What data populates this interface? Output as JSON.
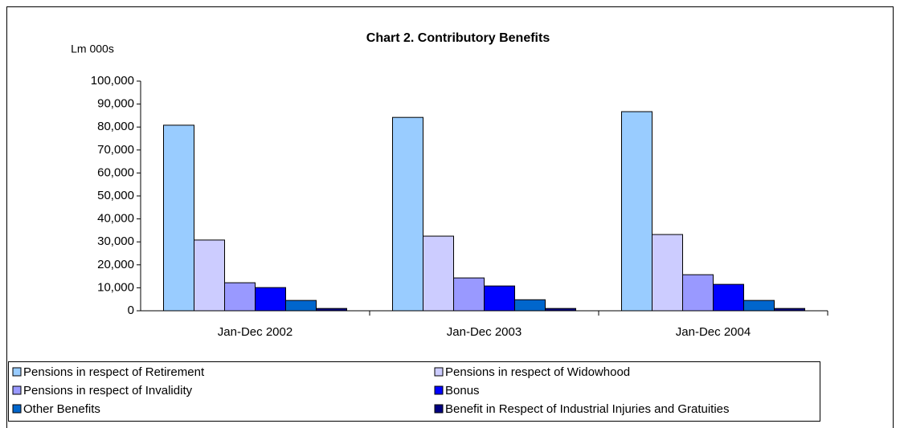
{
  "chart_data": {
    "type": "bar",
    "title": "Chart 2.  Contributory Benefits",
    "y_label": "Lm 000s",
    "categories": [
      "Jan-Dec 2002",
      "Jan-Dec 2003",
      "Jan-Dec 2004"
    ],
    "series": [
      {
        "name": "Pensions in respect of Retirement",
        "color": "#99ccff",
        "values": [
          80800,
          84200,
          86700
        ]
      },
      {
        "name": "Pensions in respect of Widowhood",
        "color": "#ccccff",
        "values": [
          30800,
          32500,
          33200
        ]
      },
      {
        "name": "Pensions in respect of Invalidity",
        "color": "#9999ff",
        "values": [
          12200,
          14300,
          15700
        ]
      },
      {
        "name": "Bonus",
        "color": "#0000ff",
        "values": [
          10100,
          10800,
          11500
        ]
      },
      {
        "name": "Other Benefits",
        "color": "#0066cc",
        "values": [
          4500,
          4800,
          4500
        ]
      },
      {
        "name": "Benefit in Respect of Industrial Injuries and Gratuities",
        "color": "#000080",
        "values": [
          1000,
          1000,
          1000
        ]
      }
    ],
    "ylim": [
      0,
      100000
    ],
    "yticks": [
      0,
      {
        "value": 10000,
        "label": "10,000"
      },
      {
        "value": 20000,
        "label": "20,000"
      },
      {
        "value": 30000,
        "label": "30,000"
      },
      {
        "value": 40000,
        "label": "40,000"
      },
      {
        "value": 50000,
        "label": "50,000"
      },
      {
        "value": 60000,
        "label": "60,000"
      },
      {
        "value": 70000,
        "label": "70,000"
      },
      {
        "value": 80000,
        "label": "80,000"
      },
      {
        "value": 90000,
        "label": "90,000"
      },
      {
        "value": 100000,
        "label": "100,000"
      }
    ],
    "legend": "bottom"
  }
}
